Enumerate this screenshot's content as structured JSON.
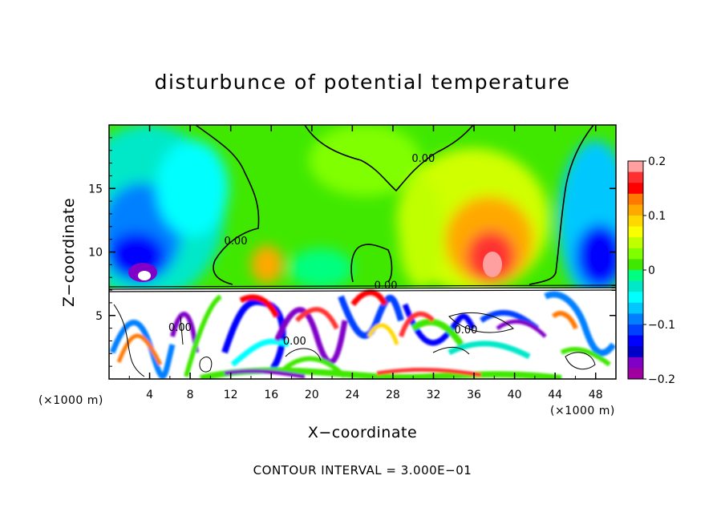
{
  "chart_data": {
    "type": "heatmap",
    "title": "disturbunce of potential temperature",
    "xlabel": "X−coordinate",
    "ylabel": "Z−coordinate",
    "x_unit_left": "(×1000 m)",
    "x_unit_right": "(×1000 m)",
    "footer": "CONTOUR INTERVAL = 3.000E−01",
    "xlim": [
      0,
      50
    ],
    "ylim": [
      0,
      20
    ],
    "x_ticks": [
      4,
      8,
      12,
      16,
      20,
      24,
      28,
      32,
      36,
      40,
      44,
      48
    ],
    "x_tick_labels": [
      "4",
      "8",
      "12",
      "16",
      "20",
      "24",
      "28",
      "32",
      "36",
      "40",
      "44",
      "48"
    ],
    "y_ticks": [
      5,
      10,
      15
    ],
    "y_tick_labels": [
      "5",
      "10",
      "15"
    ],
    "colorbar": {
      "min": -0.2,
      "max": 0.2,
      "ticks": [
        0.2,
        0.1,
        0,
        -0.1,
        -0.2
      ],
      "tick_labels": [
        "0.2",
        "0.1",
        "0",
        "−0.1",
        "−0.2"
      ],
      "colors": [
        "#ffa0a0",
        "#ff3030",
        "#ff0000",
        "#ff7800",
        "#ffa800",
        "#ffd800",
        "#f8ff00",
        "#c0ff00",
        "#80ff00",
        "#40e800",
        "#00ff80",
        "#00e8c8",
        "#00ffff",
        "#00c8ff",
        "#0080ff",
        "#0040ff",
        "#0000ff",
        "#0000c8",
        "#8000c8",
        "#a000a0"
      ]
    },
    "contour_labels": [
      {
        "text": "0.00",
        "x": 31,
        "z": 17.1
      },
      {
        "text": "0.00",
        "x": 12.5,
        "z": 10.6
      },
      {
        "text": "0.00",
        "x": 27.3,
        "z": 7.1
      },
      {
        "text": "0.00",
        "x": 35.2,
        "z": 3.6
      },
      {
        "text": "0.00",
        "x": 18.3,
        "z": 2.7
      },
      {
        "text": "0.00",
        "x": 7.0,
        "z": 3.8
      }
    ]
  }
}
